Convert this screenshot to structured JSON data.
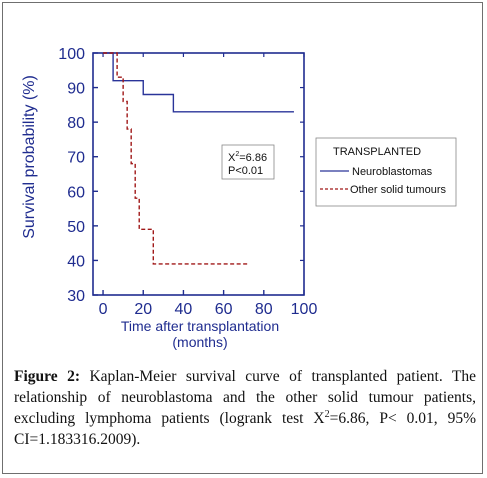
{
  "chart_data": {
    "type": "line",
    "step": true,
    "xlabel": "Time after transplantation\n(months)",
    "ylabel": "Survival probability (%)",
    "xlim": [
      -5,
      100
    ],
    "ylim": [
      30,
      100
    ],
    "xticks": [
      0,
      20,
      40,
      60,
      80,
      100
    ],
    "yticks": [
      30,
      40,
      50,
      60,
      70,
      80,
      90,
      100
    ],
    "legend_title": "TRANSPLANTED",
    "legend_position": "right",
    "annotation": {
      "line1_base": "X",
      "line1_sup": "2",
      "line1_rest": "=6.86",
      "line2": "P<0.01"
    },
    "series": [
      {
        "name": "Neuroblastomas",
        "style": "solid",
        "color": "#2a3499",
        "x": [
          0,
          5,
          5,
          20,
          20,
          35,
          35,
          95
        ],
        "y": [
          100,
          100,
          92,
          92,
          88,
          88,
          83,
          83
        ]
      },
      {
        "name": "Other solid tumours",
        "style": "dashed",
        "color": "#a01818",
        "x": [
          0,
          7,
          7,
          10,
          10,
          12,
          12,
          14,
          14,
          16,
          16,
          18,
          18,
          25,
          25,
          72
        ],
        "y": [
          100,
          100,
          93,
          93,
          86,
          86,
          78,
          78,
          68,
          68,
          58,
          58,
          49,
          49,
          39,
          39
        ]
      }
    ]
  },
  "caption": {
    "label": "Figure 2:",
    "text_before_sup": " Kaplan-Meier survival curve of transplanted patient. The relationship of neuroblastoma and the other solid tumour patients, excluding lymphoma patients (logrank test X",
    "sup": "2",
    "text_after_sup": "=6.86, P< 0.01, 95% CI=1.183316.2009)."
  },
  "colors": {
    "axis": "#1f2c8f",
    "neuro": "#2a3499",
    "other": "#a01818"
  }
}
